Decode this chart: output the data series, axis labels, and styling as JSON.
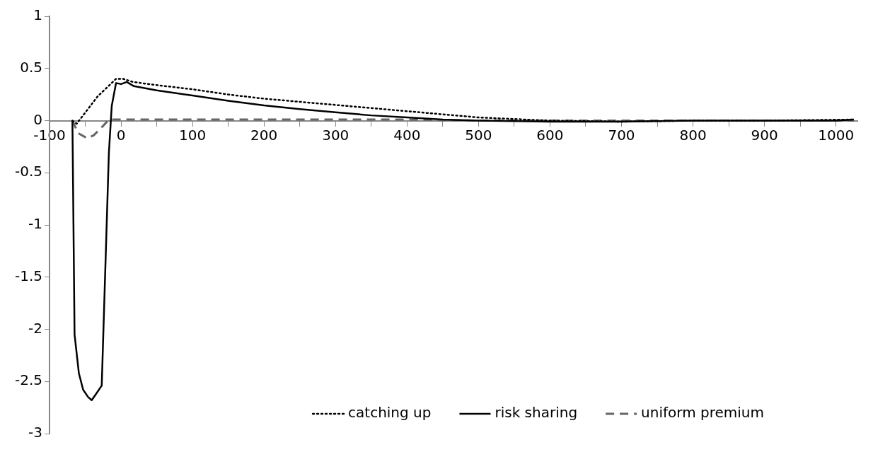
{
  "chart_data": {
    "type": "line",
    "xlim": [
      -100,
      1030
    ],
    "ylim": [
      -3,
      1
    ],
    "xticks": [
      -100,
      {
        "value": -50,
        "label": null
      },
      0,
      {
        "value": 50,
        "label": null
      },
      100,
      {
        "value": 150,
        "label": null
      },
      200,
      {
        "value": 250,
        "label": null
      },
      300,
      {
        "value": 350,
        "label": null
      },
      400,
      {
        "value": 450,
        "label": null
      },
      500,
      {
        "value": 550,
        "label": null
      },
      600,
      {
        "value": 650,
        "label": null
      },
      700,
      {
        "value": 750,
        "label": null
      },
      800,
      {
        "value": 850,
        "label": null
      },
      900,
      {
        "value": 950,
        "label": null
      },
      1000
    ],
    "yticks": [
      -3,
      -2.5,
      -2,
      -1.5,
      -1,
      -0.5,
      0,
      0.5,
      1
    ],
    "grid": false,
    "legend": "bottom",
    "marker": "none",
    "series": [
      {
        "name": "catching up",
        "color": "#000000",
        "line_style": "dotted",
        "x": [
          -68,
          -62,
          -33,
          -7,
          3,
          17,
          50,
          100,
          150,
          200,
          300,
          400,
          500,
          600,
          700,
          800,
          900,
          1025
        ],
        "values": [
          0,
          -0.03,
          0.23,
          0.4,
          0.4,
          0.37,
          0.34,
          0.3,
          0.25,
          0.21,
          0.15,
          0.09,
          0.03,
          0,
          -0.01,
          0,
          0,
          0.01
        ]
      },
      {
        "name": "risk sharing",
        "color": "#000000",
        "line_style": "solid",
        "x": [
          -68,
          -65,
          -59,
          -53,
          -46,
          -41,
          -35,
          -27,
          -17,
          -13,
          -7,
          0,
          8,
          18,
          50,
          100,
          150,
          200,
          250,
          300,
          350,
          400,
          450,
          500,
          600,
          700,
          800,
          900,
          1000,
          1025
        ],
        "values": [
          0,
          -2.05,
          -2.42,
          -2.58,
          -2.65,
          -2.68,
          -2.62,
          -2.54,
          -0.31,
          0.14,
          0.36,
          0.35,
          0.37,
          0.33,
          0.29,
          0.24,
          0.19,
          0.145,
          0.11,
          0.08,
          0.05,
          0.03,
          0.01,
          0,
          -0.01,
          -0.01,
          0,
          0,
          0,
          0.01
        ]
      },
      {
        "name": "uniform premium",
        "color": "#666666",
        "line_style": "dashed",
        "x": [
          -68,
          -60,
          -47,
          -38,
          -25,
          -17,
          0,
          200,
          400,
          500,
          1025
        ],
        "values": [
          0,
          -0.12,
          -0.17,
          -0.14,
          -0.05,
          0.01,
          0.01,
          0.01,
          0.01,
          0,
          0
        ]
      }
    ]
  }
}
